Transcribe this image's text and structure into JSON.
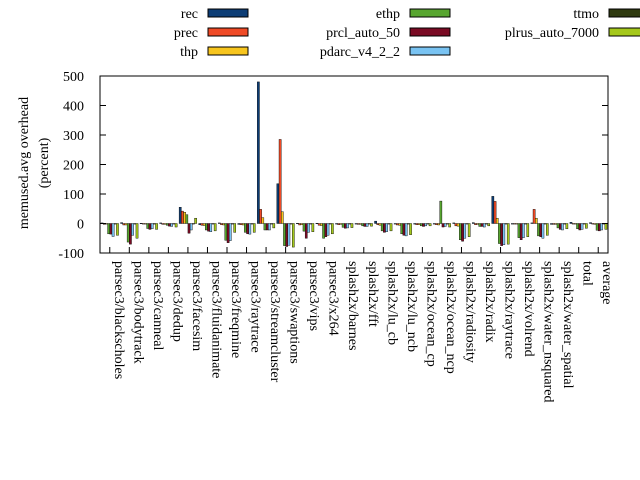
{
  "chart_data": {
    "type": "bar",
    "title": "",
    "xlabel": "",
    "ylabel": "memused.avg overhead\n(percent)",
    "ylim": [
      -100,
      500
    ],
    "yticks": [
      -100,
      0,
      100,
      200,
      300,
      400,
      500
    ],
    "grid": false,
    "legend_position": "top",
    "categories": [
      "parsec3/blackscholes",
      "parsec3/bodytrack",
      "parsec3/canneal",
      "parsec3/dedup",
      "parsec3/facesim",
      "parsec3/fluidanimate",
      "parsec3/freqmine",
      "parsec3/raytrace",
      "parsec3/streamcluster",
      "parsec3/swaptions",
      "parsec3/vips",
      "parsec3/x264",
      "splash2x/barnes",
      "splash2x/fft",
      "splash2x/lu_cb",
      "splash2x/lu_ncb",
      "splash2x/ocean_cp",
      "splash2x/ocean_ncp",
      "splash2x/radiosity",
      "splash2x/radix",
      "splash2x/raytrace",
      "splash2x/volrend",
      "splash2x/water_nsquared",
      "splash2x/water_spatial",
      "total",
      "average"
    ],
    "series": [
      {
        "name": "rec",
        "color": "#0d3d75",
        "values": [
          2,
          3,
          1,
          2,
          55,
          -4,
          2,
          -3,
          480,
          135,
          1,
          1,
          -2,
          -2,
          8,
          -1,
          -2,
          -2,
          2,
          3,
          92,
          -1,
          2,
          -3,
          4,
          3
        ]
      },
      {
        "name": "prec",
        "color": "#ef4a26",
        "values": [
          -3,
          -5,
          -2,
          -3,
          42,
          -6,
          -4,
          -4,
          48,
          285,
          -5,
          -6,
          -4,
          -3,
          -4,
          -5,
          -4,
          -4,
          -8,
          -4,
          75,
          -2,
          48,
          -3,
          -1,
          -2
        ]
      },
      {
        "name": "thp",
        "color": "#f7c51e",
        "values": [
          -2,
          -5,
          -2,
          -3,
          38,
          -7,
          -5,
          -5,
          20,
          40,
          -4,
          -7,
          -3,
          -3,
          -6,
          -6,
          -4,
          -5,
          -9,
          -3,
          18,
          -2,
          18,
          -3,
          -2,
          -3
        ]
      },
      {
        "name": "ethp",
        "color": "#57a52f",
        "values": [
          -35,
          -63,
          -17,
          -6,
          30,
          -22,
          -57,
          -30,
          -22,
          -75,
          -26,
          -50,
          -13,
          -8,
          -25,
          -35,
          -8,
          76,
          -55,
          -10,
          -68,
          -48,
          -42,
          -15,
          -18,
          -23
        ]
      },
      {
        "name": "prcl_auto_50",
        "color": "#7a0b24",
        "values": [
          -36,
          -70,
          -20,
          -9,
          -33,
          -26,
          -65,
          -35,
          -22,
          -78,
          -50,
          -45,
          -16,
          -10,
          -30,
          -40,
          -10,
          -12,
          -60,
          -10,
          -75,
          -55,
          -45,
          -20,
          -22,
          -25
        ]
      },
      {
        "name": "pdarc_v4_2_2",
        "color": "#79c3f2",
        "values": [
          -44,
          -40,
          -18,
          -10,
          -22,
          -28,
          -58,
          -36,
          -22,
          -74,
          -30,
          -40,
          -15,
          -10,
          -28,
          -42,
          -8,
          -10,
          -50,
          -12,
          -72,
          -48,
          -50,
          -22,
          -20,
          -22
        ]
      },
      {
        "name": "ttmo",
        "color": "#2f3a10",
        "values": [
          -1,
          -2,
          -1,
          -1,
          -1,
          -2,
          -2,
          -2,
          -1,
          -2,
          -1,
          -2,
          -1,
          -1,
          -2,
          -2,
          -1,
          -1,
          -2,
          -1,
          -2,
          -2,
          -2,
          -1,
          -1,
          -1
        ]
      },
      {
        "name": "plrus_auto_7000",
        "color": "#a5c81b",
        "values": [
          -40,
          -50,
          -20,
          -12,
          18,
          -25,
          -30,
          -30,
          -15,
          -80,
          -28,
          -35,
          -14,
          -9,
          -25,
          -38,
          -8,
          -12,
          -45,
          -8,
          -70,
          -45,
          -40,
          -18,
          -16,
          -20
        ]
      }
    ]
  }
}
